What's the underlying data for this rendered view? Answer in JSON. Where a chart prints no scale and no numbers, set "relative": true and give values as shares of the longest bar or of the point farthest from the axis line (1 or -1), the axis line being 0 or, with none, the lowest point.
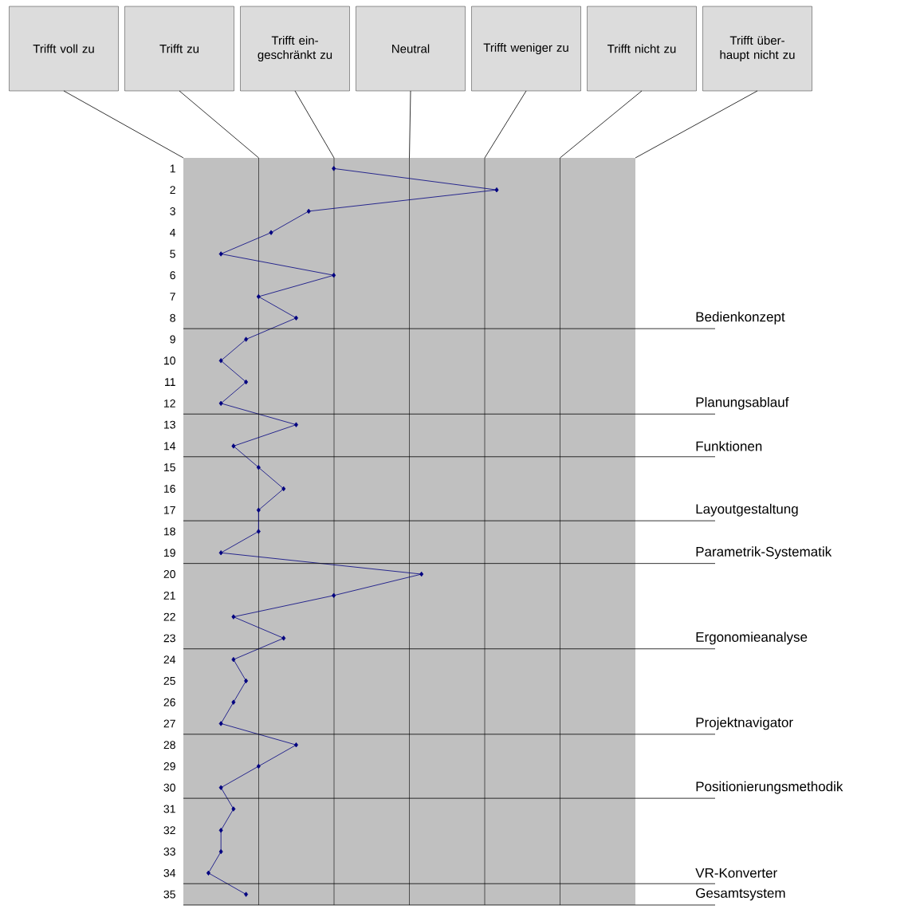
{
  "chart_data": {
    "type": "line",
    "orientation": "horizontal",
    "relative": true,
    "categories": [
      "1",
      "2",
      "3",
      "4",
      "5",
      "6",
      "7",
      "8",
      "9",
      "10",
      "11",
      "12",
      "13",
      "14",
      "15",
      "16",
      "17",
      "18",
      "19",
      "20",
      "21",
      "22",
      "23",
      "24",
      "25",
      "26",
      "27",
      "28",
      "29",
      "30",
      "31",
      "32",
      "33",
      "34",
      "35"
    ],
    "values": [
      0.48,
      1,
      0.4,
      0.28,
      0.12,
      0.48,
      0.24,
      0.36,
      0.2,
      0.12,
      0.2,
      0.12,
      0.36,
      0.16,
      0.24,
      0.32,
      0.24,
      0.24,
      0.12,
      0.76,
      0.48,
      0.16,
      0.32,
      0.16,
      0.2,
      0.16,
      0.12,
      0.36,
      0.24,
      0.12,
      0.16,
      0.12,
      0.12,
      0.08,
      0.2
    ],
    "color": "#000080",
    "marker": "diamond",
    "grid": "x",
    "annotations": [
      "Trifft voll zu",
      "Trifft zu",
      "Trifft ein-geschränkt zu",
      "Neutral",
      "Trifft weniger zu",
      "Trifft nicht zu",
      "Trifft über-haupt nicht zu",
      "Bedienkonzept",
      "Planungsablauf",
      "Funktionen",
      "Layoutgestaltung",
      "Parametrik-Systematik",
      "Ergonomieanalyse",
      "Projektnavigator",
      "Positionierungsmethodik",
      "VR-Konverter",
      "Gesamtsystem"
    ]
  }
}
